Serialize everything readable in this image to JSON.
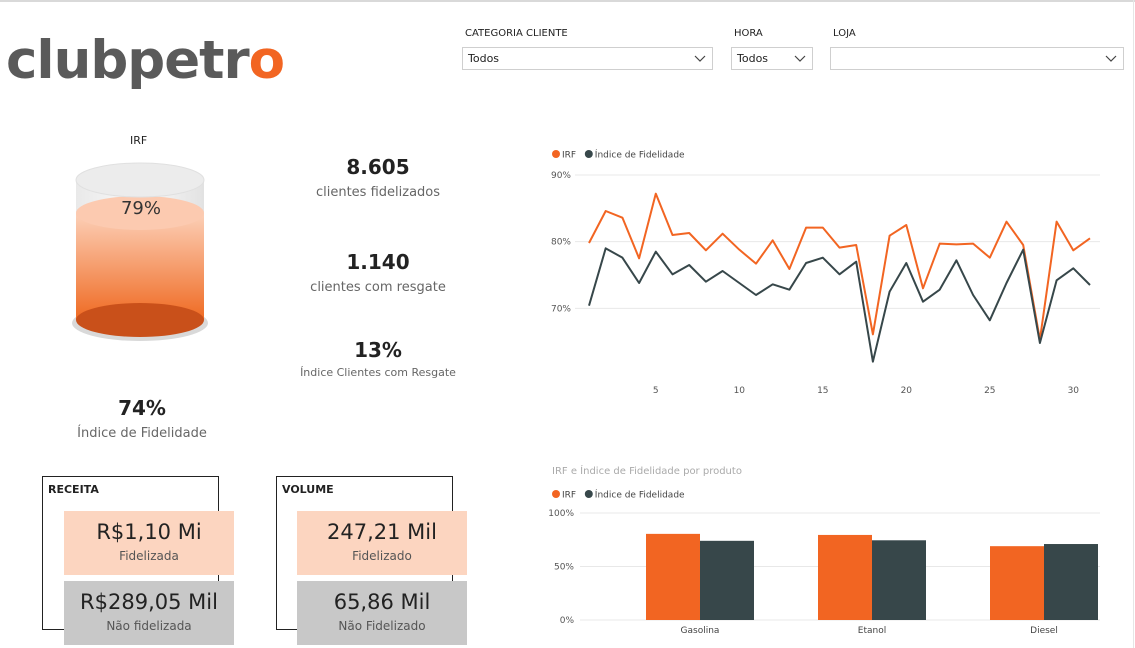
{
  "brand": {
    "part1": "clubpe",
    "part2": "tr",
    "part3": "o"
  },
  "slicers": [
    {
      "label": "CATEGORIA CLIENTE",
      "value": "Todos"
    },
    {
      "label": "HORA",
      "value": "Todos"
    },
    {
      "label": "LOJA",
      "value": ""
    }
  ],
  "gauge": {
    "title": "IRF",
    "value_label": "79%",
    "fraction": 0.79
  },
  "fidelidade": {
    "value": "74%",
    "label": "Índice de Fidelidade"
  },
  "kpis": [
    {
      "value": "8.605",
      "label": "clientes fidelizados"
    },
    {
      "value": "1.140",
      "label": "clientes com resgate"
    },
    {
      "value": "13%",
      "label": "Índice Clientes com Resgate"
    }
  ],
  "receita": {
    "title": "RECEITA",
    "fid_value": "R$1,10 Mi",
    "fid_label": "Fidelizada",
    "nao_value": "R$289,05 Mil",
    "nao_label": "Não fidelizada"
  },
  "volume": {
    "title": "VOLUME",
    "fid_value": "247,21 Mil",
    "fid_label": "Fidelizado",
    "nao_value": "65,86 Mil",
    "nao_label": "Não Fidelizado"
  },
  "colors": {
    "orange": "#f26522",
    "dark": "#37474a",
    "grid": "#e8e8e8"
  },
  "chart_data": [
    {
      "type": "line",
      "title": "",
      "legend": [
        "IRF",
        "Índice de Fidelidade"
      ],
      "x": [
        1,
        2,
        3,
        4,
        5,
        6,
        7,
        8,
        9,
        10,
        11,
        12,
        13,
        14,
        15,
        16,
        17,
        18,
        19,
        20,
        21,
        22,
        23,
        24,
        25,
        26,
        27,
        28,
        29,
        30,
        31
      ],
      "xticks": [
        "5",
        "10",
        "15",
        "20",
        "25",
        "30"
      ],
      "xtick_values": [
        5,
        10,
        15,
        20,
        25,
        30
      ],
      "yticks": [
        "70%",
        "80%",
        "90%"
      ],
      "ytick_values": [
        70,
        80,
        90
      ],
      "ylim": [
        61.5,
        90
      ],
      "series": [
        {
          "name": "IRF",
          "color": "#f26522",
          "values": [
            79.8,
            84.6,
            83.6,
            77.5,
            87.2,
            81.0,
            81.3,
            78.7,
            81.2,
            78.8,
            76.7,
            80.2,
            75.9,
            82.1,
            82.1,
            79.1,
            79.5,
            66.1,
            80.9,
            82.5,
            73.0,
            79.7,
            79.6,
            79.7,
            77.6,
            83.0,
            79.5,
            65.3,
            83.0,
            78.7,
            80.5
          ]
        },
        {
          "name": "Índice de Fidelidade",
          "color": "#37474a",
          "values": [
            70.4,
            79.0,
            77.6,
            73.8,
            78.5,
            75.1,
            76.5,
            74.0,
            75.6,
            73.8,
            72.0,
            73.6,
            72.8,
            76.8,
            77.6,
            75.1,
            77.0,
            62.0,
            72.5,
            76.8,
            71.0,
            72.8,
            77.2,
            72.0,
            68.2,
            73.8,
            78.8,
            64.8,
            74.2,
            76.0,
            73.5
          ]
        }
      ]
    },
    {
      "type": "bar",
      "title": "IRF e Índice de Fidelidade por produto",
      "legend": [
        "IRF",
        "Índice de Fidelidade"
      ],
      "categories": [
        "Gasolina",
        "Etanol",
        "Diesel"
      ],
      "yticks": [
        "0%",
        "50%",
        "100%"
      ],
      "ytick_values": [
        0,
        50,
        100
      ],
      "ylim": [
        0,
        100
      ],
      "series": [
        {
          "name": "IRF",
          "color": "#f26522",
          "values": [
            80.5,
            79.5,
            69.0
          ]
        },
        {
          "name": "Índice de Fidelidade",
          "color": "#37474a",
          "values": [
            74.0,
            74.5,
            71.0
          ]
        }
      ]
    }
  ]
}
